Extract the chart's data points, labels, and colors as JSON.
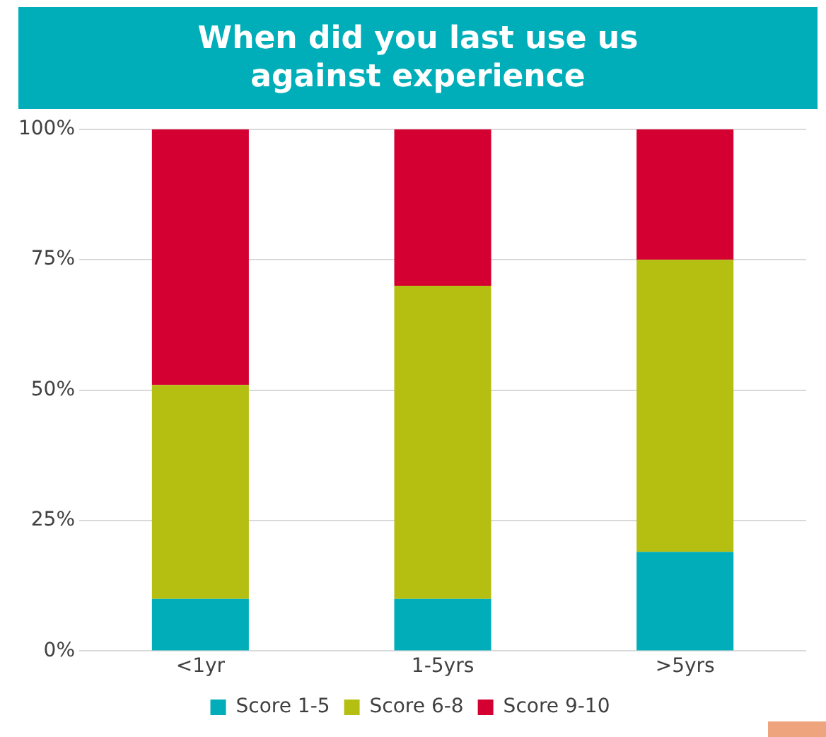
{
  "chart_data": {
    "type": "bar",
    "title": "When did you last use us against experience",
    "categories": [
      "<1yr",
      "1-5yrs",
      ">5yrs"
    ],
    "stacked": true,
    "series": [
      {
        "name": "Score 1-5",
        "color": "#00adb9",
        "values": [
          10,
          10,
          19
        ]
      },
      {
        "name": "Score 6-8",
        "color": "#b5bf12",
        "values": [
          41,
          60,
          56
        ]
      },
      {
        "name": "Score 9-10",
        "color": "#d50032",
        "values": [
          49,
          30,
          25
        ]
      }
    ],
    "ylim": [
      0,
      100
    ],
    "yticks": [
      {
        "value": 0,
        "label": "0%"
      },
      {
        "value": 25,
        "label": "25%"
      },
      {
        "value": 50,
        "label": "50%"
      },
      {
        "value": 75,
        "label": "75%"
      },
      {
        "value": 100,
        "label": "100%"
      }
    ],
    "grid": "y",
    "legend": "bottom"
  }
}
